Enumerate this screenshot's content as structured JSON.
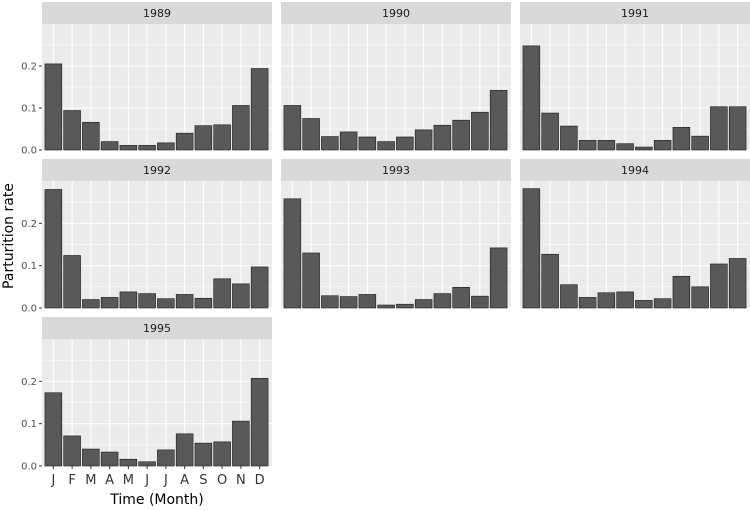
{
  "chart_data": {
    "type": "bar",
    "facets": [
      "1989",
      "1990",
      "1991",
      "1992",
      "1993",
      "1994",
      "1995"
    ],
    "categories": [
      "J",
      "F",
      "M",
      "A",
      "M",
      "J",
      "J",
      "A",
      "S",
      "O",
      "N",
      "D"
    ],
    "series": [
      {
        "name": "1989",
        "values": [
          0.205,
          0.094,
          0.066,
          0.02,
          0.011,
          0.011,
          0.017,
          0.04,
          0.058,
          0.06,
          0.106,
          0.194
        ]
      },
      {
        "name": "1990",
        "values": [
          0.106,
          0.075,
          0.032,
          0.043,
          0.031,
          0.02,
          0.031,
          0.048,
          0.059,
          0.071,
          0.09,
          0.142
        ]
      },
      {
        "name": "1991",
        "values": [
          0.248,
          0.088,
          0.057,
          0.023,
          0.023,
          0.015,
          0.007,
          0.023,
          0.054,
          0.033,
          0.103,
          0.103
        ]
      },
      {
        "name": "1992",
        "values": [
          0.28,
          0.124,
          0.02,
          0.025,
          0.038,
          0.034,
          0.022,
          0.032,
          0.023,
          0.069,
          0.057,
          0.097
        ]
      },
      {
        "name": "1993",
        "values": [
          0.258,
          0.13,
          0.029,
          0.027,
          0.032,
          0.007,
          0.009,
          0.02,
          0.034,
          0.049,
          0.028,
          0.142
        ]
      },
      {
        "name": "1994",
        "values": [
          0.282,
          0.127,
          0.055,
          0.025,
          0.036,
          0.038,
          0.018,
          0.022,
          0.075,
          0.05,
          0.104,
          0.117
        ]
      },
      {
        "name": "1995",
        "values": [
          0.173,
          0.071,
          0.04,
          0.033,
          0.016,
          0.01,
          0.038,
          0.076,
          0.054,
          0.057,
          0.106,
          0.207
        ]
      }
    ],
    "xlabel": "Time (Month)",
    "ylabel": "Parturition rate",
    "ylim": [
      0,
      0.3
    ],
    "yticks": [
      0.0,
      0.1,
      0.2
    ],
    "ytick_labels": [
      "0.0",
      "0.1",
      "0.2"
    ],
    "grid": true,
    "legend": "none"
  },
  "colors": {
    "panel_background": "#EBEBEB",
    "strip_background": "#D9D9D9",
    "grid_major": "#FFFFFF",
    "bar_fill": "#595959",
    "bar_outline": "#1A1A1A"
  }
}
